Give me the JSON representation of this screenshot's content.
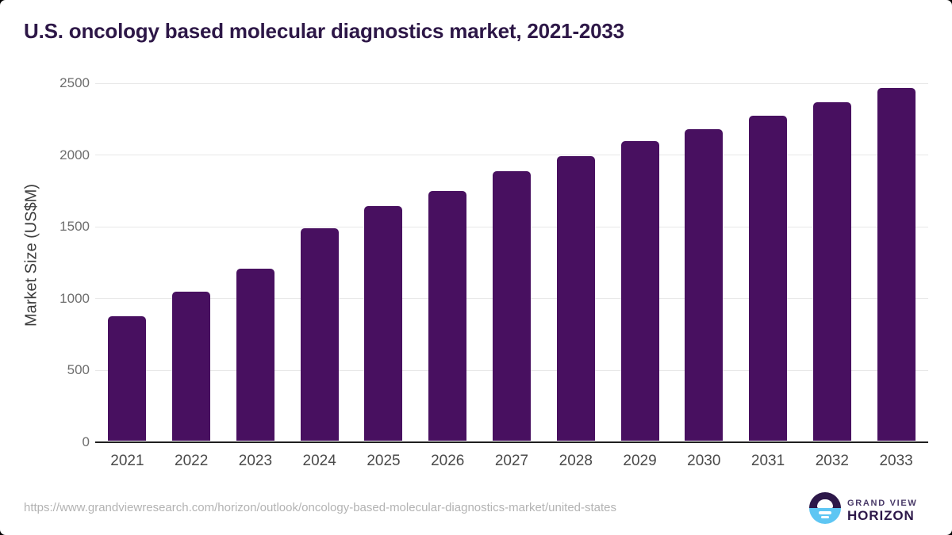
{
  "title": "U.S. oncology based molecular diagnostics market, 2021-2033",
  "chart_data": {
    "type": "bar",
    "title": "U.S. oncology based molecular diagnostics market, 2021-2033",
    "xlabel": "",
    "ylabel": "Market Size (US$M)",
    "categories": [
      "2021",
      "2022",
      "2023",
      "2024",
      "2025",
      "2026",
      "2027",
      "2028",
      "2029",
      "2030",
      "2031",
      "2032",
      "2033"
    ],
    "values": [
      880,
      1050,
      1210,
      1490,
      1645,
      1750,
      1890,
      1995,
      2095,
      2180,
      2275,
      2365,
      2465
    ],
    "ylim": [
      0,
      2500
    ],
    "yticks": [
      0,
      500,
      1000,
      1500,
      2000,
      2500
    ],
    "grid": true,
    "legend": false,
    "bar_color": "#481060"
  },
  "footer": {
    "source_url": "https://www.grandviewresearch.com/horizon/outlook/oncology-based-molecular-diagnostics-market/united-states",
    "logo_line1": "GRAND VIEW",
    "logo_line2": "HORIZON"
  },
  "colors": {
    "title": "#2d1747",
    "bar": "#481060",
    "axis_line": "#1f1f1f",
    "gridline": "#e8e8e8",
    "y_tick_label": "#6e6e6e",
    "x_tick_label": "#4a4a4a",
    "url": "#b3b3b3",
    "logo_dark": "#2d1849",
    "logo_blue": "#5ec6f3"
  }
}
